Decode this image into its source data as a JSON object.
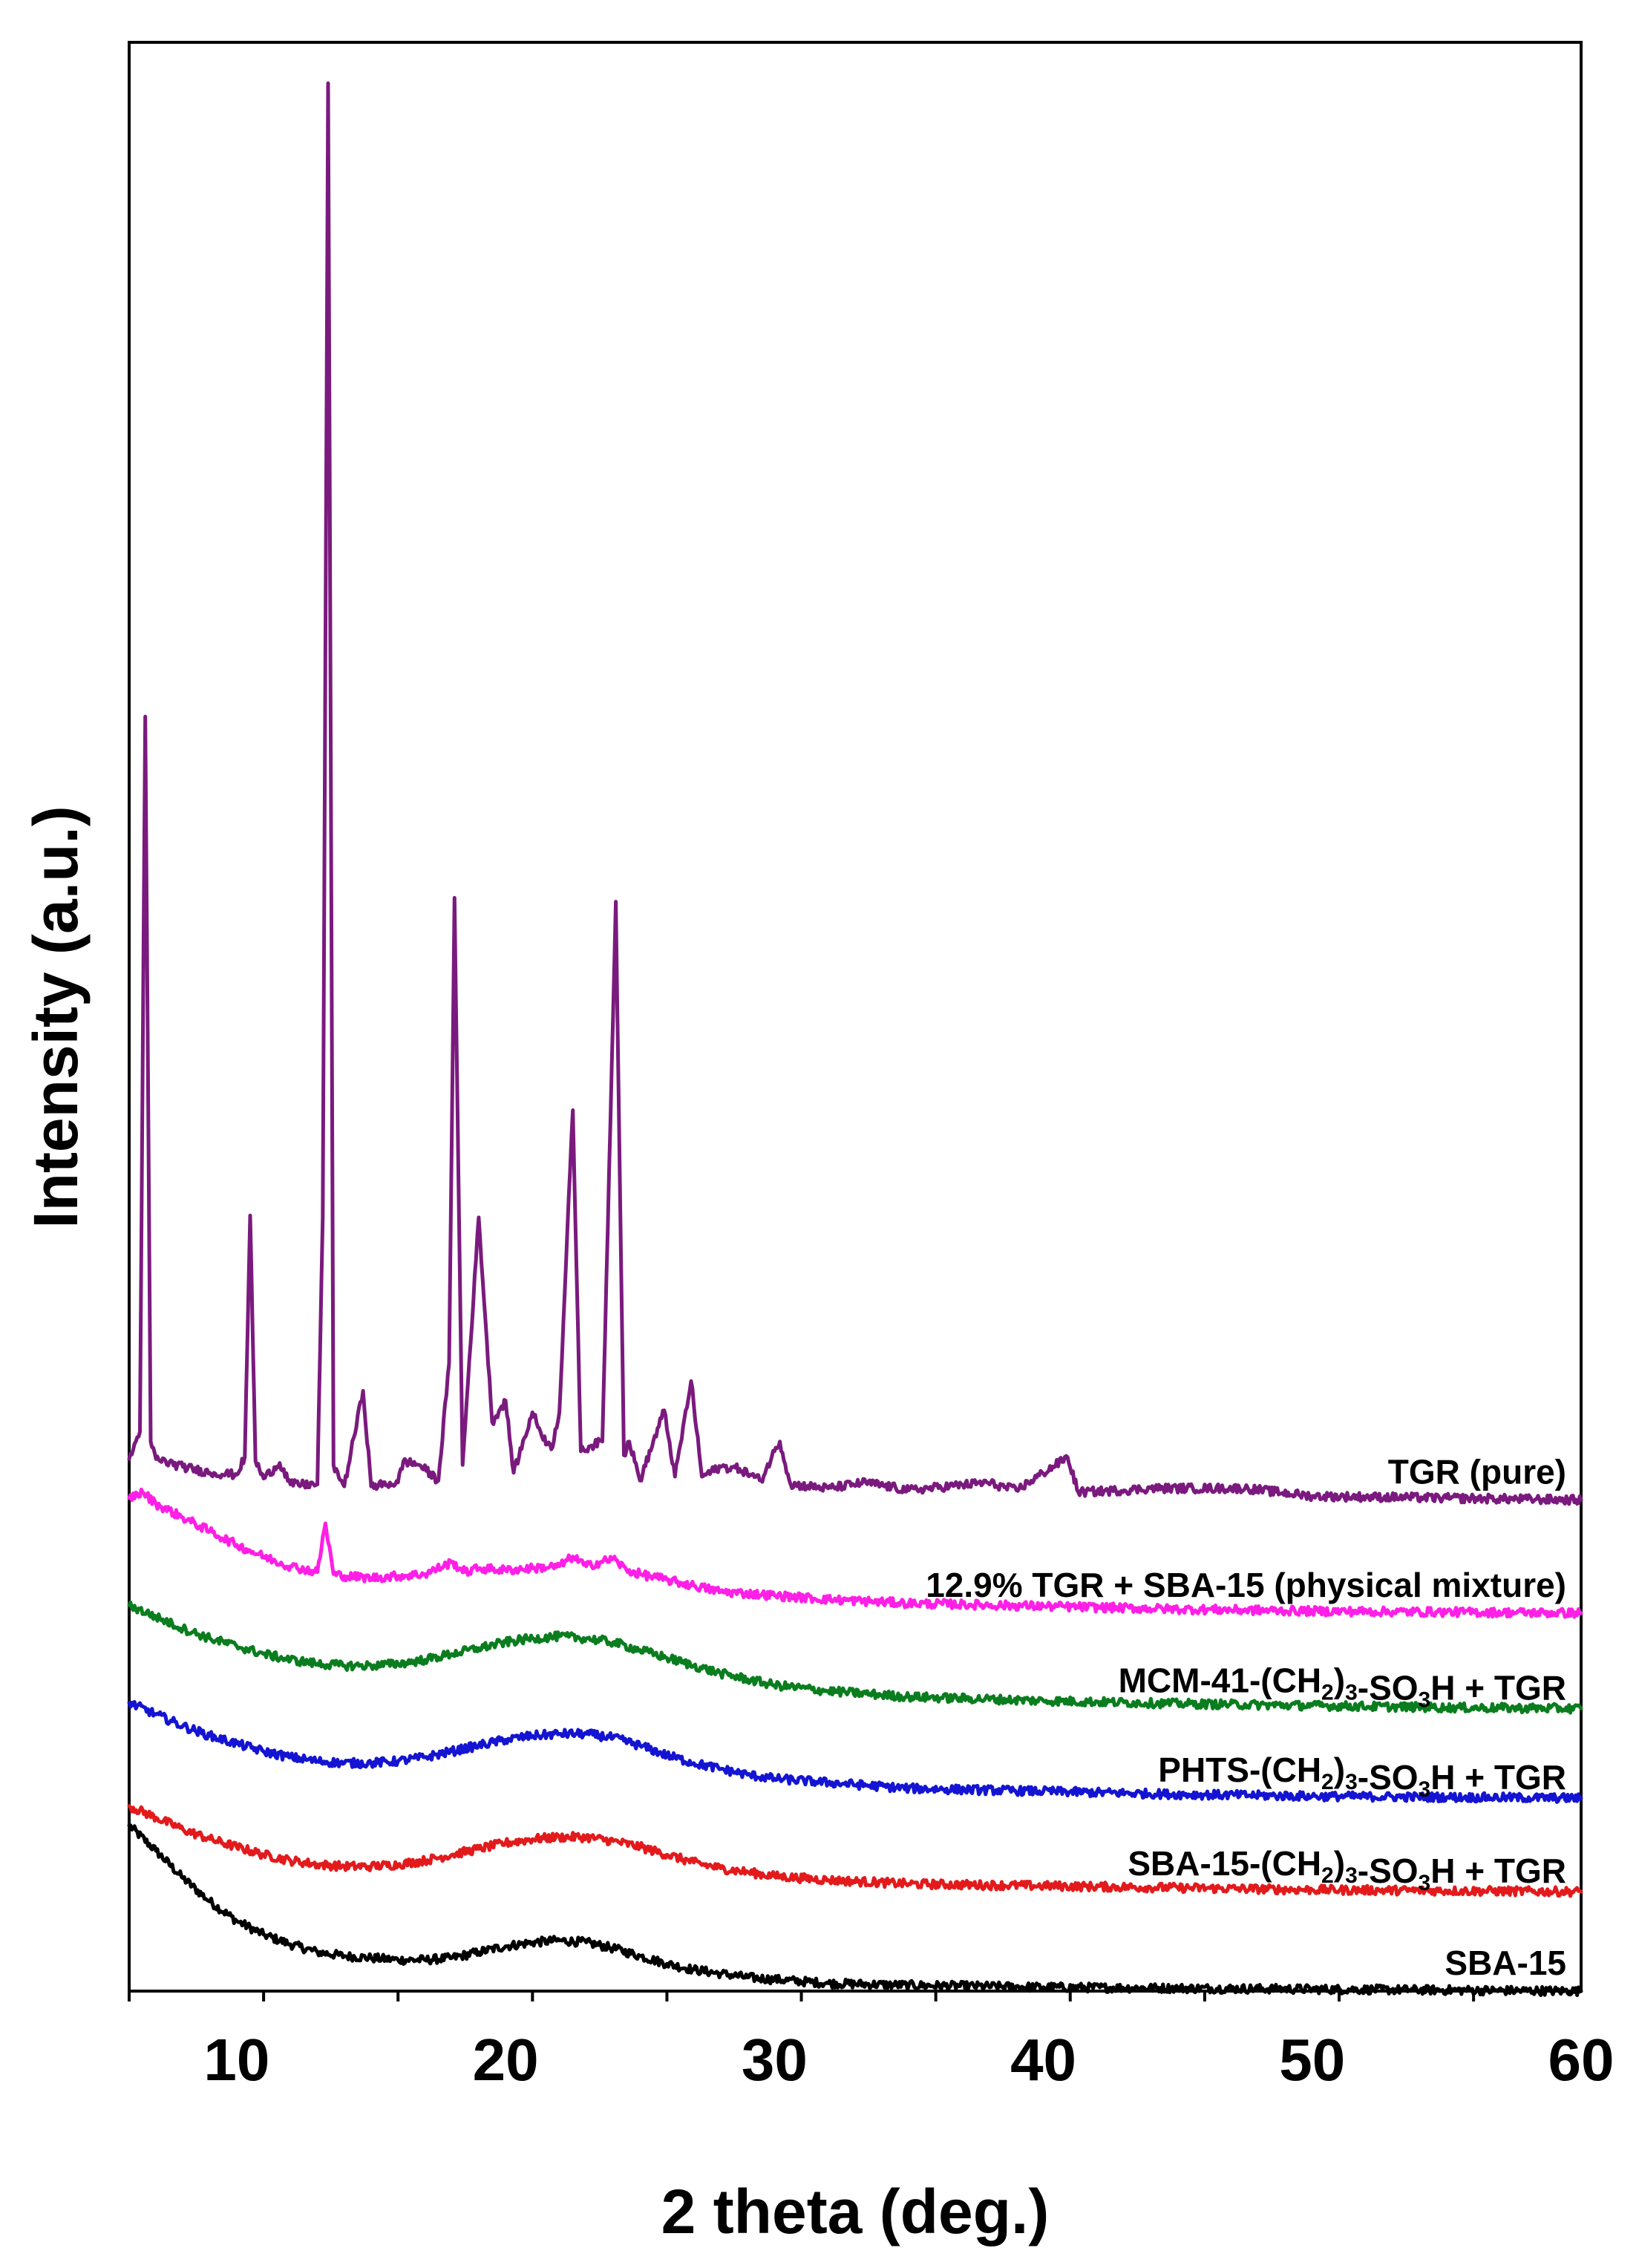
{
  "chart_data": {
    "type": "line",
    "title": "",
    "xlabel": "2 theta (deg.)",
    "ylabel": "Intensity (a.u.)",
    "xlim": [
      6,
      60
    ],
    "x_ticks": [
      10,
      20,
      30,
      40,
      50,
      60
    ],
    "y_ticks": [],
    "ylim": [
      0,
      100
    ],
    "grid": false,
    "legend": "inline labels at right end of each trace",
    "series": [
      {
        "name": "SBA-15",
        "color": "#000000",
        "baseline": 0,
        "points": [
          [
            6,
            8.5
          ],
          [
            7,
            7.2
          ],
          [
            8,
            5.8
          ],
          [
            9,
            4.6
          ],
          [
            10,
            3.6
          ],
          [
            11,
            2.9
          ],
          [
            12,
            2.4
          ],
          [
            13,
            2.0
          ],
          [
            14,
            1.8
          ],
          [
            15,
            1.7
          ],
          [
            16,
            1.6
          ],
          [
            17,
            1.6
          ],
          [
            18,
            1.7
          ],
          [
            19,
            2.0
          ],
          [
            20,
            2.3
          ],
          [
            21,
            2.5
          ],
          [
            22,
            2.6
          ],
          [
            23,
            2.5
          ],
          [
            24,
            2.2
          ],
          [
            25,
            1.8
          ],
          [
            26,
            1.4
          ],
          [
            27,
            1.1
          ],
          [
            28,
            0.9
          ],
          [
            29,
            0.7
          ],
          [
            30,
            0.6
          ],
          [
            32,
            0.4
          ],
          [
            35,
            0.3
          ],
          [
            40,
            0.2
          ],
          [
            45,
            0.15
          ],
          [
            50,
            0.1
          ],
          [
            55,
            0.05
          ],
          [
            60,
            0.0
          ]
        ]
      },
      {
        "name": "SBA-15-(CH2)3-SO3H + TGR",
        "color": "#e31a1c",
        "baseline": 5.1,
        "points": [
          [
            6,
            4.4
          ],
          [
            7,
            3.8
          ],
          [
            8,
            3.2
          ],
          [
            9,
            2.7
          ],
          [
            10,
            2.3
          ],
          [
            11,
            1.9
          ],
          [
            12,
            1.6
          ],
          [
            13,
            1.4
          ],
          [
            14,
            1.3
          ],
          [
            15,
            1.3
          ],
          [
            16,
            1.4
          ],
          [
            17,
            1.6
          ],
          [
            18,
            1.9
          ],
          [
            19,
            2.2
          ],
          [
            20,
            2.5
          ],
          [
            21,
            2.7
          ],
          [
            22,
            2.8
          ],
          [
            23,
            2.8
          ],
          [
            24,
            2.6
          ],
          [
            25,
            2.3
          ],
          [
            26,
            1.9
          ],
          [
            27,
            1.5
          ],
          [
            28,
            1.2
          ],
          [
            29,
            1.0
          ],
          [
            30,
            0.8
          ],
          [
            32,
            0.6
          ],
          [
            35,
            0.4
          ],
          [
            40,
            0.3
          ],
          [
            45,
            0.2
          ],
          [
            50,
            0.1
          ],
          [
            55,
            0.05
          ],
          [
            60,
            0.0
          ]
        ]
      },
      {
        "name": "PHTS-(CH2)3-SO3H + TGR",
        "color": "#1414d2",
        "baseline": 9.9,
        "points": [
          [
            6,
            4.9
          ],
          [
            7,
            4.3
          ],
          [
            8,
            3.7
          ],
          [
            9,
            3.2
          ],
          [
            10,
            2.8
          ],
          [
            11,
            2.4
          ],
          [
            12,
            2.1
          ],
          [
            13,
            1.9
          ],
          [
            14,
            1.8
          ],
          [
            15,
            1.8
          ],
          [
            16,
            1.9
          ],
          [
            17,
            2.1
          ],
          [
            18,
            2.4
          ],
          [
            19,
            2.7
          ],
          [
            20,
            3.0
          ],
          [
            21,
            3.2
          ],
          [
            22,
            3.3
          ],
          [
            23,
            3.3
          ],
          [
            24,
            3.1
          ],
          [
            25,
            2.7
          ],
          [
            26,
            2.2
          ],
          [
            27,
            1.8
          ],
          [
            28,
            1.5
          ],
          [
            29,
            1.2
          ],
          [
            30,
            1.0
          ],
          [
            32,
            0.8
          ],
          [
            35,
            0.5
          ],
          [
            40,
            0.35
          ],
          [
            45,
            0.2
          ],
          [
            50,
            0.1
          ],
          [
            55,
            0.05
          ],
          [
            60,
            0.0
          ]
        ]
      },
      {
        "name": "MCM-41-(CH2)3-SO3H + TGR",
        "color": "#0a7d1e",
        "baseline": 14.5,
        "points": [
          [
            6,
            5.3
          ],
          [
            7,
            4.7
          ],
          [
            8,
            4.1
          ],
          [
            9,
            3.6
          ],
          [
            10,
            3.2
          ],
          [
            11,
            2.8
          ],
          [
            12,
            2.5
          ],
          [
            13,
            2.3
          ],
          [
            14,
            2.2
          ],
          [
            15,
            2.2
          ],
          [
            16,
            2.3
          ],
          [
            17,
            2.5
          ],
          [
            18,
            2.8
          ],
          [
            19,
            3.1
          ],
          [
            20,
            3.4
          ],
          [
            21,
            3.6
          ],
          [
            22,
            3.7
          ],
          [
            23,
            3.6
          ],
          [
            24,
            3.4
          ],
          [
            25,
            3.0
          ],
          [
            26,
            2.6
          ],
          [
            27,
            2.2
          ],
          [
            28,
            1.8
          ],
          [
            29,
            1.5
          ],
          [
            30,
            1.2
          ],
          [
            32,
            0.9
          ],
          [
            35,
            0.6
          ],
          [
            40,
            0.4
          ],
          [
            45,
            0.25
          ],
          [
            50,
            0.15
          ],
          [
            55,
            0.05
          ],
          [
            60,
            0.0
          ]
        ]
      },
      {
        "name": "12.9% TGR + SBA-15 (physical mixture)",
        "color": "#ff1fe6",
        "baseline": 19.4,
        "points": [
          [
            6,
            5.9
          ],
          [
            6.5,
            6.2
          ],
          [
            7,
            5.6
          ],
          [
            8,
            4.9
          ],
          [
            9,
            4.2
          ],
          [
            10,
            3.5
          ],
          [
            11,
            2.9
          ],
          [
            12,
            2.4
          ],
          [
            13,
            2.1
          ],
          [
            13.3,
            4.6
          ],
          [
            13.6,
            2.0
          ],
          [
            14,
            1.9
          ],
          [
            15,
            1.8
          ],
          [
            16,
            1.9
          ],
          [
            17,
            2.0
          ],
          [
            18,
            2.6
          ],
          [
            18.5,
            2.1
          ],
          [
            19,
            2.3
          ],
          [
            20,
            2.2
          ],
          [
            21,
            2.3
          ],
          [
            22,
            2.4
          ],
          [
            22.5,
            2.9
          ],
          [
            23,
            2.4
          ],
          [
            24,
            2.8
          ],
          [
            24.5,
            2.2
          ],
          [
            25,
            2.0
          ],
          [
            26,
            1.7
          ],
          [
            27,
            1.4
          ],
          [
            28,
            1.1
          ],
          [
            30,
            0.9
          ],
          [
            32,
            0.7
          ],
          [
            35,
            0.5
          ],
          [
            40,
            0.35
          ],
          [
            45,
            0.2
          ],
          [
            50,
            0.1
          ],
          [
            55,
            0.05
          ],
          [
            60,
            0.0
          ]
        ]
      },
      {
        "name": "TGR (pure)",
        "color": "#7a1a7e",
        "baseline": 25.2,
        "points": [
          [
            6,
            2.1
          ],
          [
            6.4,
            3.5
          ],
          [
            6.6,
            40.2
          ],
          [
            6.8,
            3.0
          ],
          [
            7,
            2.1
          ],
          [
            8,
            1.7
          ],
          [
            9,
            1.4
          ],
          [
            10,
            1.3
          ],
          [
            10.3,
            2.2
          ],
          [
            10.5,
            14.6
          ],
          [
            10.7,
            2.0
          ],
          [
            11,
            1.1
          ],
          [
            11.6,
            1.9
          ],
          [
            12,
            0.8
          ],
          [
            13,
            0.8
          ],
          [
            13.2,
            14.5
          ],
          [
            13.4,
            72.7
          ],
          [
            13.6,
            1.8
          ],
          [
            14,
            0.7
          ],
          [
            14.7,
            5.6
          ],
          [
            15,
            0.7
          ],
          [
            16,
            0.9
          ],
          [
            16.2,
            2.0
          ],
          [
            16.8,
            1.8
          ],
          [
            17.5,
            1.0
          ],
          [
            17.9,
            7.0
          ],
          [
            18.1,
            30.9
          ],
          [
            18.4,
            1.8
          ],
          [
            19,
            14.5
          ],
          [
            19.5,
            4.0
          ],
          [
            20,
            5.1
          ],
          [
            20.3,
            1.4
          ],
          [
            21,
            4.5
          ],
          [
            21.3,
            3.5
          ],
          [
            21.7,
            2.6
          ],
          [
            22,
            4.5
          ],
          [
            22.5,
            20.0
          ],
          [
            22.8,
            2.5
          ],
          [
            23.2,
            2.8
          ],
          [
            23.6,
            3.0
          ],
          [
            24.1,
            30.7
          ],
          [
            24.4,
            2.3
          ],
          [
            24.6,
            3.0
          ],
          [
            25,
            1.0
          ],
          [
            25.9,
            4.6
          ],
          [
            26.3,
            1.2
          ],
          [
            26.9,
            6.1
          ],
          [
            27.3,
            1.2
          ],
          [
            28,
            1.7
          ],
          [
            28.7,
            1.6
          ],
          [
            29.5,
            1.0
          ],
          [
            30,
            2.5
          ],
          [
            30.2,
            3.0
          ],
          [
            30.6,
            0.8
          ],
          [
            32,
            0.6
          ],
          [
            33.4,
            0.9
          ],
          [
            35,
            0.5
          ],
          [
            37.9,
            0.9
          ],
          [
            39,
            0.5
          ],
          [
            40.9,
            2.2
          ],
          [
            41.3,
            0.4
          ],
          [
            43,
            0.5
          ],
          [
            44,
            0.6
          ],
          [
            47.5,
            0.6
          ],
          [
            50,
            0.2
          ],
          [
            55,
            0.1
          ],
          [
            60,
            0.0
          ]
        ]
      }
    ]
  }
}
